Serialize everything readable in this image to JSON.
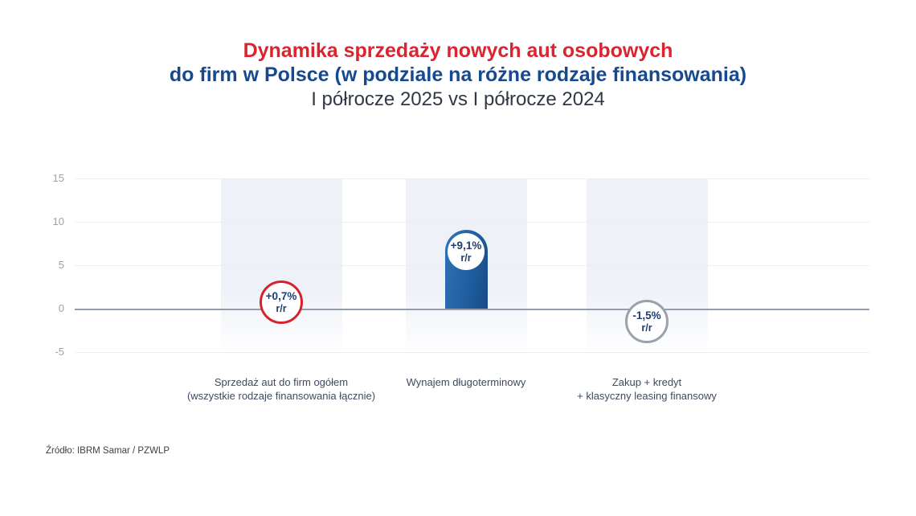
{
  "header": {
    "title_line1": "Dynamika sprzedaży nowych aut osobowych",
    "title_line2": "do firm w Polsce (w podziale na różne rodzaje finansowania)",
    "subtitle": "I półrocze 2025 vs I półrocze 2024"
  },
  "colors": {
    "title_red": "#da242f",
    "title_blue": "#17498f",
    "subtitle_dark": "#2f3945",
    "bar_blue_start": "#3173b5",
    "bar_blue_end": "#174a85",
    "marker_red": "#d5222d",
    "marker_gray": "#9aa1ab",
    "value_text_navy": "#1d3e6e",
    "band_fill": "#eef1f8",
    "gridline": "#eceef2",
    "zero_line": "#949dab",
    "tick_text": "#99a1ad",
    "category_text": "#3f4b60"
  },
  "chart_data": {
    "type": "bar",
    "title": "Dynamika sprzedaży nowych aut osobowych do firm w Polsce (w podziale na różne rodzaje finansowania)",
    "subtitle": "I półrocze 2025 vs I półrocze 2024",
    "ylabel": "",
    "xlabel": "",
    "ylim": [
      -5,
      15
    ],
    "yticks": [
      15,
      10,
      5,
      0,
      -5
    ],
    "grid": true,
    "legend": false,
    "categories": [
      {
        "label_lines": [
          "Sprzedaż aut do firm ogółem",
          "(wszystkie rodzaje finansowania łącznie)"
        ],
        "value": 0.7,
        "value_label": "+0,7%",
        "value_sublabel": "r/r",
        "marker": "outlined-circle",
        "marker_color": "#d5222d"
      },
      {
        "label_lines": [
          "Wynajem długoterminowy"
        ],
        "value": 9.1,
        "value_label": "+9,1%",
        "value_sublabel": "r/r",
        "marker": "bar",
        "marker_color": "#1d5a9e"
      },
      {
        "label_lines": [
          "Zakup + kredyt",
          "+ klasyczny leasing finansowy"
        ],
        "value": -1.5,
        "value_label": "-1,5%",
        "value_sublabel": "r/r",
        "marker": "outlined-circle",
        "marker_color": "#9aa1ab"
      }
    ]
  },
  "footer": {
    "source": "Źródło: IBRM Samar / PZWLP"
  }
}
